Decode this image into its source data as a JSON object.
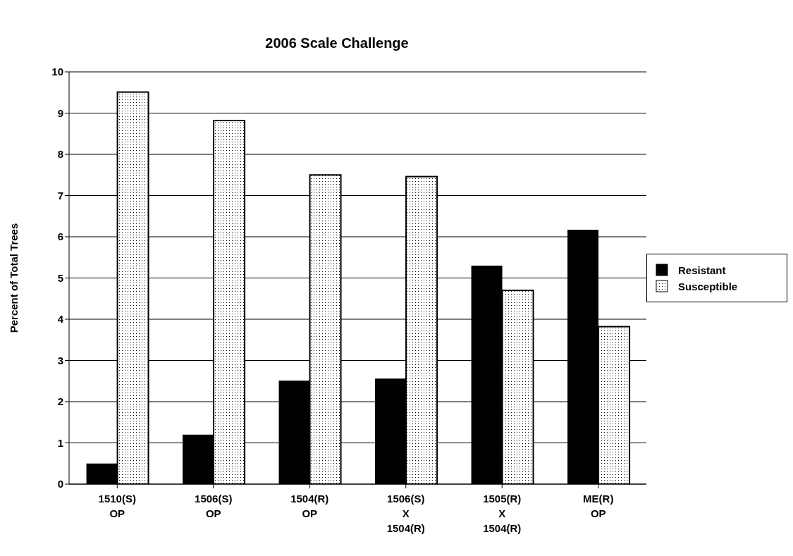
{
  "chart_data": {
    "type": "bar",
    "title": "2006 Scale Challenge",
    "ylabel": "Percent of Total Trees",
    "categories": [
      "1510(S)\nOP",
      "1506(S)\nOP",
      "1504(R)\nOP",
      "1506(S)\nX\n1504(R)",
      "1505(R)\nX\n1504(R)",
      "ME(R)\nOP"
    ],
    "series": [
      {
        "name": "Resistant",
        "color": "#000000",
        "values": [
          0.5,
          1.2,
          2.51,
          2.56,
          5.3,
          6.17
        ]
      },
      {
        "name": "Susceptible",
        "color": "#ffffff",
        "values": [
          9.51,
          8.82,
          7.5,
          7.46,
          4.7,
          3.82
        ]
      }
    ],
    "ylim": [
      0,
      10
    ],
    "yticks": [
      0,
      1,
      2,
      3,
      4,
      5,
      6,
      7,
      8,
      9,
      10
    ],
    "grid": "y",
    "legend": "right"
  }
}
